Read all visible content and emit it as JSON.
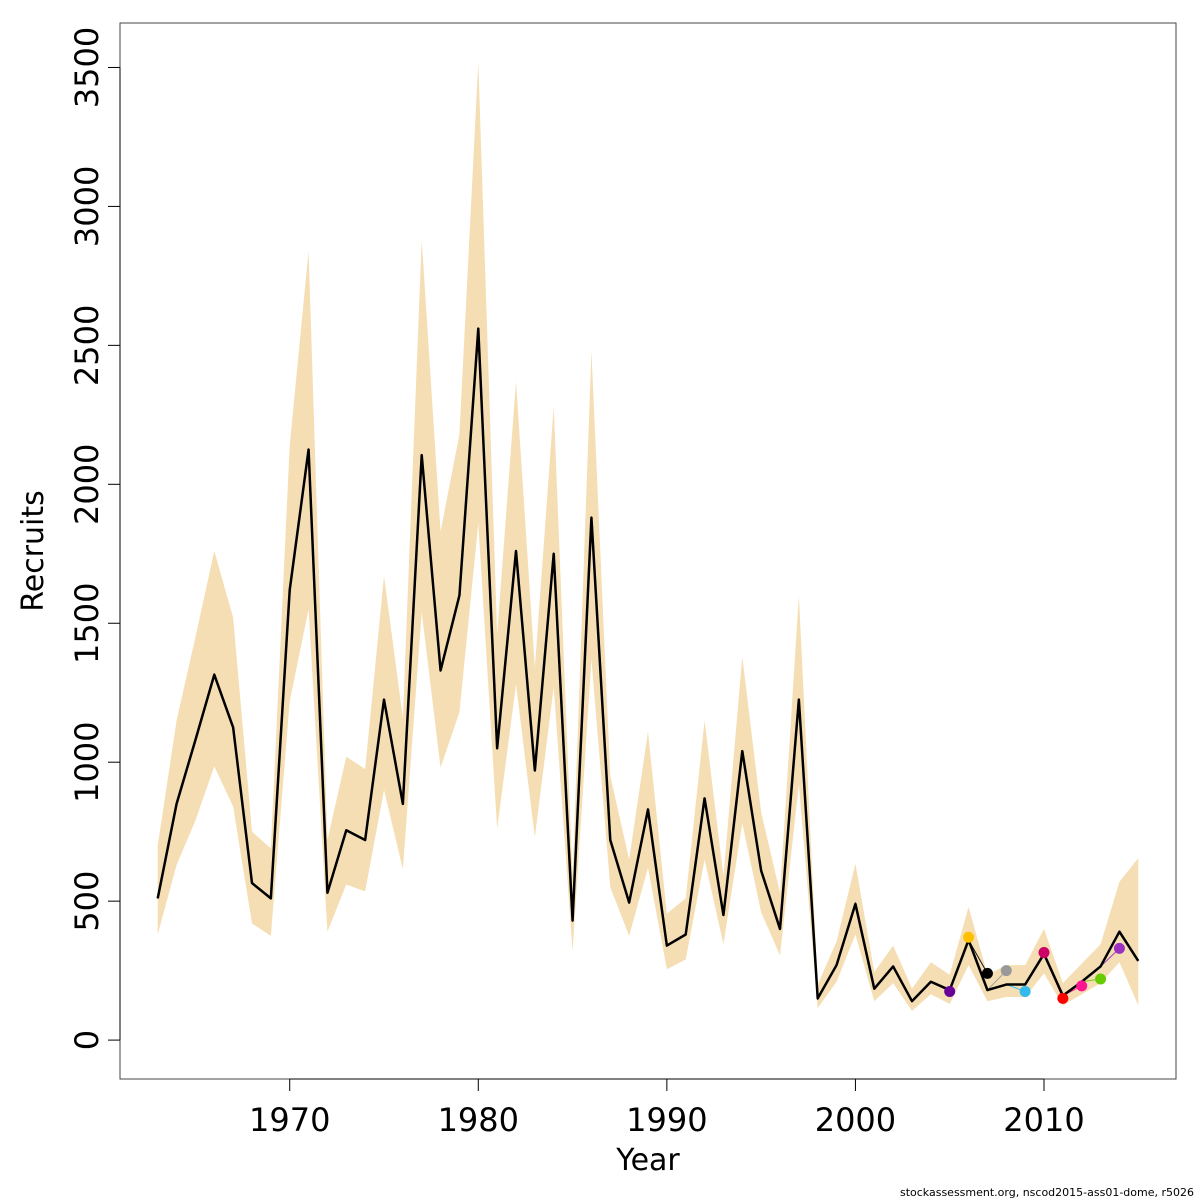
{
  "chart_data": {
    "type": "line",
    "xlabel": "Year",
    "ylabel": "Recruits",
    "xlim": [
      1961,
      2017
    ],
    "ylim": [
      -140,
      3660
    ],
    "x_ticks": [
      1970,
      1980,
      1990,
      2000,
      2010
    ],
    "y_ticks": [
      0,
      500,
      1000,
      1500,
      2000,
      2500,
      3000,
      3500
    ],
    "grid": false,
    "credit": "stockassessment.org, nscod2015-ass01-dome, r5026",
    "band_color": "#f5deb3",
    "main": {
      "x": [
        1963,
        1964,
        1965,
        1966,
        1967,
        1968,
        1969,
        1970,
        1971,
        1972,
        1973,
        1974,
        1975,
        1976,
        1977,
        1978,
        1979,
        1980,
        1981,
        1982,
        1983,
        1984,
        1985,
        1986,
        1987,
        1988,
        1989,
        1990,
        1991,
        1992,
        1993,
        1994,
        1995,
        1996,
        1997,
        1998,
        1999,
        2000,
        2001,
        2002,
        2003,
        2004,
        2005,
        2006,
        2007,
        2008,
        2009,
        2010,
        2011,
        2012,
        2013,
        2014,
        2015
      ],
      "y": [
        510,
        850,
        1080,
        1315,
        1125,
        565,
        510,
        1620,
        2125,
        530,
        755,
        720,
        1225,
        850,
        2105,
        1330,
        1600,
        2560,
        1050,
        1760,
        970,
        1750,
        430,
        1880,
        720,
        495,
        830,
        340,
        380,
        870,
        450,
        1040,
        610,
        400,
        1225,
        150,
        270,
        490,
        185,
        265,
        140,
        210,
        180,
        360,
        180,
        200,
        200,
        310,
        160,
        210,
        265,
        390,
        285
      ],
      "lower": [
        380,
        630,
        790,
        985,
        840,
        420,
        375,
        1220,
        1550,
        390,
        560,
        535,
        900,
        615,
        1540,
        980,
        1180,
        1860,
        760,
        1280,
        730,
        1270,
        320,
        1370,
        550,
        375,
        620,
        255,
        290,
        650,
        345,
        780,
        460,
        305,
        920,
        115,
        210,
        380,
        140,
        205,
        105,
        165,
        130,
        270,
        140,
        155,
        155,
        240,
        125,
        165,
        205,
        280,
        125
      ],
      "upper": [
        700,
        1150,
        1450,
        1760,
        1520,
        750,
        690,
        2140,
        2840,
        720,
        1020,
        975,
        1670,
        1160,
        2880,
        1830,
        2180,
        3520,
        1460,
        2370,
        1340,
        2280,
        590,
        2480,
        950,
        650,
        1110,
        455,
        510,
        1150,
        590,
        1380,
        820,
        530,
        1600,
        200,
        355,
        635,
        245,
        340,
        185,
        280,
        235,
        480,
        235,
        270,
        270,
        400,
        205,
        275,
        345,
        570,
        655
      ]
    },
    "peels": [
      {
        "name": "2014",
        "color": "#9b30c0",
        "end_year": 2014,
        "end_value": 330
      },
      {
        "name": "2013",
        "color": "#66cc00",
        "end_year": 2013,
        "end_value": 220
      },
      {
        "name": "2012",
        "color": "#ff1493",
        "end_year": 2012,
        "end_value": 195
      },
      {
        "name": "2011",
        "color": "#ff0000",
        "end_year": 2011,
        "end_value": 150
      },
      {
        "name": "2010",
        "color": "#cc0066",
        "end_year": 2010,
        "end_value": 315
      },
      {
        "name": "2009",
        "color": "#33bbee",
        "end_year": 2009,
        "end_value": 175
      },
      {
        "name": "2008",
        "color": "#999999",
        "end_year": 2008,
        "end_value": 250
      },
      {
        "name": "2007",
        "color": "#000000",
        "end_year": 2007,
        "end_value": 240
      },
      {
        "name": "2006",
        "color": "#ffc000",
        "end_year": 2006,
        "end_value": 370
      },
      {
        "name": "2005",
        "color": "#660099",
        "end_year": 2005,
        "end_value": 175
      }
    ]
  }
}
